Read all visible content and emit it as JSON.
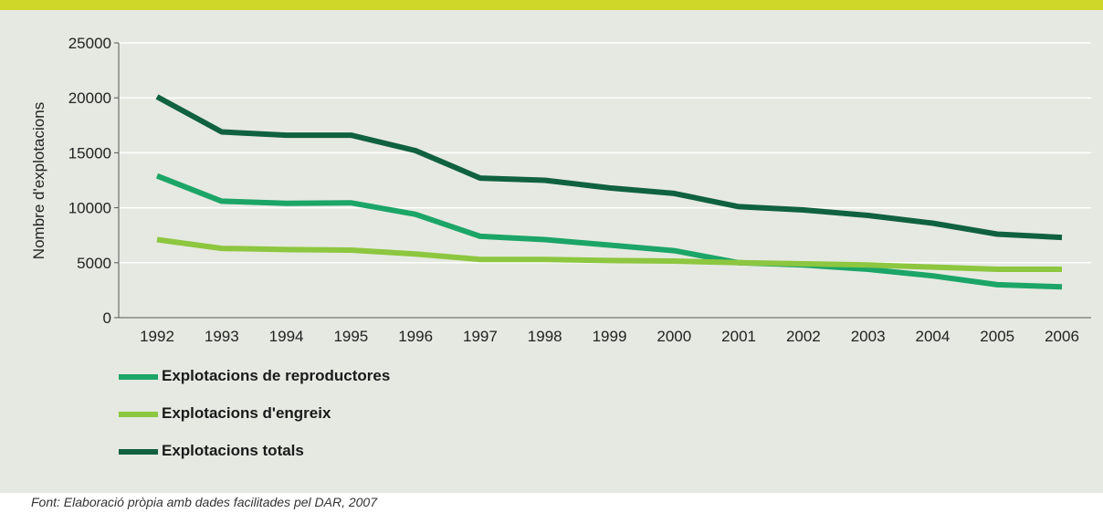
{
  "chart_data": {
    "type": "line",
    "ylabel": "Nombre d'explotacions",
    "ylim": [
      0,
      25000
    ],
    "yticks": [
      0,
      5000,
      10000,
      15000,
      20000,
      25000
    ],
    "x": [
      "1992",
      "1993",
      "1994",
      "1995",
      "1996",
      "1997",
      "1998",
      "1999",
      "2000",
      "2001",
      "2002",
      "2003",
      "2004",
      "2005",
      "2006"
    ],
    "series": [
      {
        "name": "Explotacions de reproductores",
        "color": "#1ba567",
        "values": [
          12900,
          10600,
          10400,
          10450,
          9400,
          7400,
          7100,
          6600,
          6100,
          5000,
          4800,
          4400,
          3800,
          3000,
          2800
        ]
      },
      {
        "name": "Explotacions d'engreix",
        "color": "#8dc63f",
        "values": [
          7100,
          6300,
          6200,
          6150,
          5800,
          5300,
          5300,
          5200,
          5150,
          5000,
          4900,
          4800,
          4600,
          4400,
          4400
        ]
      },
      {
        "name": "Explotacions totals",
        "color": "#10613f",
        "values": [
          20100,
          16900,
          16600,
          16600,
          15200,
          12700,
          12500,
          11800,
          11300,
          10100,
          9800,
          9300,
          8600,
          7600,
          7300
        ]
      }
    ],
    "grid": true,
    "legend_position": "bottom-left"
  },
  "source_note": "Font: Elaboració pròpia amb dades facilitades pel DAR, 2007"
}
